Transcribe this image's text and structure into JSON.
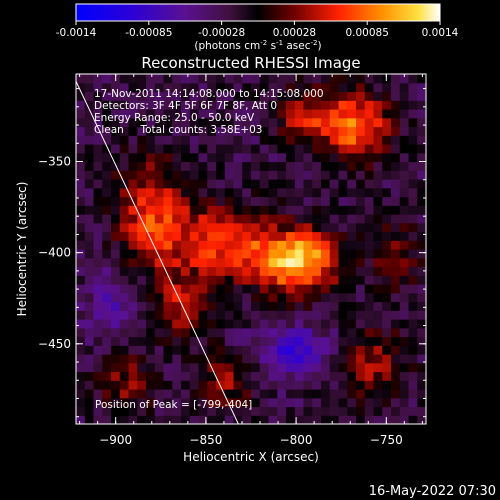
{
  "colorbar": {
    "ticks": [
      "-0.0014",
      "-0.00085",
      "-0.00028",
      "0.00028",
      "0.00085",
      "0.0014"
    ],
    "units_main": "(photons cm",
    "units_exp1": "-2",
    "units_mid1": " s",
    "units_exp2": "-1",
    "units_mid2": " asec",
    "units_exp3": "-2",
    "units_end": ")"
  },
  "chart_data": {
    "type": "heatmap",
    "title": "Reconstructed RHESSI Image",
    "xlabel": "Heliocentric X (arcsec)",
    "ylabel": "Heliocentric Y (arcsec)",
    "xlim": [
      -922,
      -728
    ],
    "ylim": [
      -494,
      -302
    ],
    "x_ticks": [
      -900,
      -850,
      -800,
      -750
    ],
    "y_ticks": [
      -350,
      -400,
      -450
    ],
    "x_tick_labels": [
      "−900",
      "−850",
      "−800",
      "−750"
    ],
    "y_tick_labels": [
      "−350",
      "−400",
      "−450"
    ],
    "color_range": [
      -0.0014,
      0.0014
    ],
    "annotations": [
      "17-Nov-2011 14:14:08.000 to 14:15:08.000",
      "Detectors: 3F 4F 5F 6F 7F 8F, Att 0",
      "Energy Range: 25.0 - 50.0 keV",
      "Clean     Total counts: 3.58E+03"
    ],
    "peak_label": "Position of Peak = [-799,-404]",
    "peak": [
      -799,
      -404
    ],
    "limb_line": [
      [
        -922,
        -306
      ],
      [
        -832,
        -494
      ]
    ],
    "sources": [
      {
        "x": -800,
        "y": -404,
        "amp": 0.00145,
        "sx": 16,
        "sy": 12
      },
      {
        "x": -842,
        "y": -394,
        "amp": 0.0009,
        "sx": 18,
        "sy": 14
      },
      {
        "x": -880,
        "y": -380,
        "amp": 0.00085,
        "sx": 14,
        "sy": 22
      },
      {
        "x": -767,
        "y": -330,
        "amp": 0.00105,
        "sx": 13,
        "sy": 13
      },
      {
        "x": -795,
        "y": -325,
        "amp": 0.00065,
        "sx": 12,
        "sy": 10
      },
      {
        "x": -865,
        "y": -430,
        "amp": 0.0006,
        "sx": 12,
        "sy": 12
      },
      {
        "x": -895,
        "y": -470,
        "amp": 0.0005,
        "sx": 11,
        "sy": 13
      },
      {
        "x": -840,
        "y": -470,
        "amp": 0.00055,
        "sx": 12,
        "sy": 11
      },
      {
        "x": -760,
        "y": -460,
        "amp": 0.0006,
        "sx": 14,
        "sy": 14
      },
      {
        "x": -745,
        "y": -400,
        "amp": 0.00045,
        "sx": 10,
        "sy": 14
      },
      {
        "x": -800,
        "y": -455,
        "amp": -0.0006,
        "sx": 18,
        "sy": 10
      },
      {
        "x": -900,
        "y": -430,
        "amp": -0.0004,
        "sx": 12,
        "sy": 16
      }
    ]
  },
  "footer": {
    "date": "16-May-2022 07:30"
  }
}
